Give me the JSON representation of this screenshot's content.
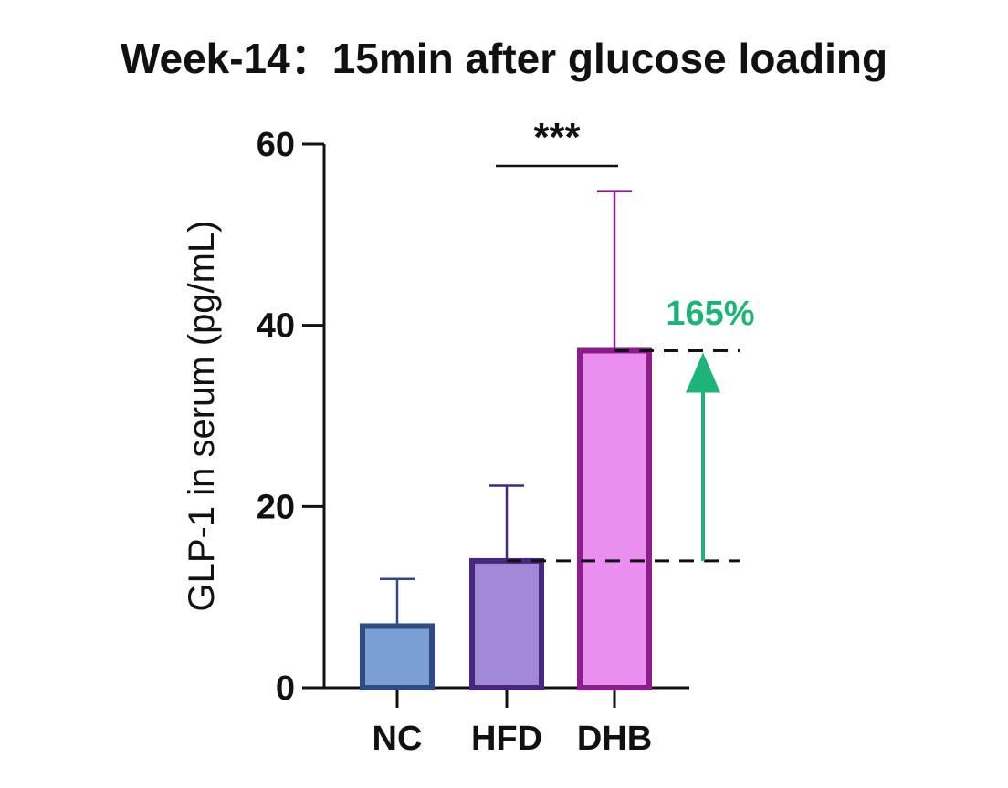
{
  "chart_data": {
    "type": "bar",
    "title": "Week-14：15min after glucose loading",
    "xlabel": "",
    "ylabel": "GLP-1  in serum (pg/mL)",
    "ylim": [
      0,
      60
    ],
    "yticks": [
      0,
      20,
      40,
      60
    ],
    "categories": [
      "NC",
      "HFD",
      "DHB"
    ],
    "values": [
      6.8,
      14.0,
      37.2
    ],
    "error_upper": [
      12.0,
      22.3,
      54.8
    ],
    "colors": {
      "fill": [
        "#7a9fd4",
        "#a289d8",
        "#ea8ef0"
      ],
      "stroke": [
        "#2f4b82",
        "#46287e",
        "#8e1c8c"
      ]
    },
    "significance": {
      "from": "HFD",
      "to": "DHB",
      "label": "***"
    },
    "annotation": {
      "label": "165%",
      "color": "#1fb477",
      "from_value": 14.0,
      "to_value": 37.2
    }
  }
}
